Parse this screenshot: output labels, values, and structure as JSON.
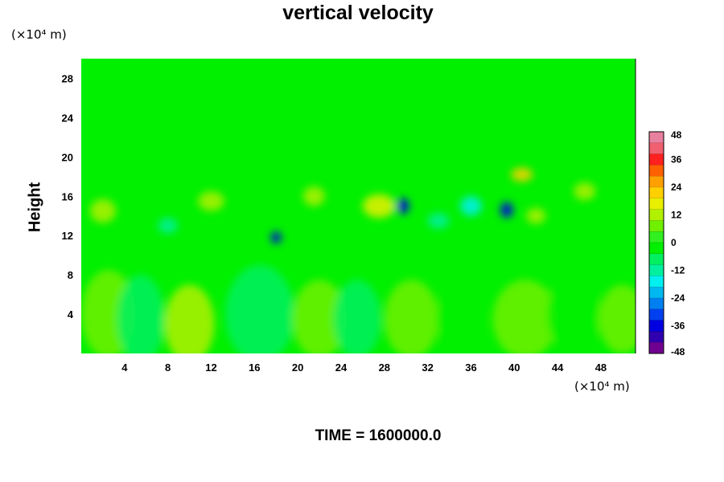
{
  "chart_data": {
    "type": "heatmap",
    "title": "vertical velocity",
    "ylabel": "Height",
    "xlabel": "",
    "x_unit": "(×10⁴ m)",
    "y_unit": "(×10⁴ m)",
    "footer": "TIME = 1600000.0",
    "xlim": [
      0,
      51.2
    ],
    "ylim": [
      0,
      30
    ],
    "x_ticks": [
      "4",
      "8",
      "12",
      "16",
      "20",
      "24",
      "28",
      "32",
      "36",
      "40",
      "44",
      "48"
    ],
    "y_ticks": [
      "4",
      "8",
      "12",
      "16",
      "20",
      "24",
      "28"
    ],
    "colorbar": {
      "range": [
        -48,
        48
      ],
      "ticks": [
        "48",
        "36",
        "24",
        "12",
        "0",
        "-12",
        "-24",
        "-36",
        "-48"
      ],
      "colors": [
        "#e880a0",
        "#f06070",
        "#ff2020",
        "#ff6000",
        "#ffa000",
        "#ffd000",
        "#e8f000",
        "#b0f000",
        "#70f000",
        "#30f020",
        "#00f000",
        "#00f060",
        "#00f0a0",
        "#00f0f0",
        "#00b8f0",
        "#0080f0",
        "#0040f0",
        "#0000e0",
        "#3000b0",
        "#700090"
      ]
    },
    "features": [
      {
        "x": 2.5,
        "y": 4.0,
        "rx": 2.5,
        "ry": 4.5,
        "v": 8
      },
      {
        "x": 5.5,
        "y": 3.5,
        "rx": 2.2,
        "ry": 4.5,
        "v": -6
      },
      {
        "x": 10.0,
        "y": 3.0,
        "rx": 2.3,
        "ry": 4.0,
        "v": 10
      },
      {
        "x": 16.5,
        "y": 4.0,
        "rx": 3.2,
        "ry": 5.0,
        "v": -5
      },
      {
        "x": 22.0,
        "y": 3.5,
        "rx": 2.5,
        "ry": 4.0,
        "v": 5
      },
      {
        "x": 25.5,
        "y": 3.5,
        "rx": 2.2,
        "ry": 4.0,
        "v": -5
      },
      {
        "x": 30.5,
        "y": 3.5,
        "rx": 2.5,
        "ry": 4.0,
        "v": 6
      },
      {
        "x": 35.0,
        "y": 3.5,
        "rx": 2.2,
        "ry": 4.0,
        "v": -4
      },
      {
        "x": 41.0,
        "y": 3.5,
        "rx": 3.0,
        "ry": 4.0,
        "v": 5
      },
      {
        "x": 45.5,
        "y": 4.0,
        "rx": 2.5,
        "ry": 4.0,
        "v": -4
      },
      {
        "x": 50.0,
        "y": 3.5,
        "rx": 2.2,
        "ry": 3.5,
        "v": 6
      },
      {
        "x": 18.0,
        "y": 11.8,
        "rx": 0.5,
        "ry": 0.6,
        "v": -36
      },
      {
        "x": 29.7,
        "y": 15.0,
        "rx": 0.6,
        "ry": 0.8,
        "v": -34
      },
      {
        "x": 39.3,
        "y": 14.6,
        "rx": 0.6,
        "ry": 0.8,
        "v": -34
      },
      {
        "x": 40.7,
        "y": 18.2,
        "rx": 1.0,
        "ry": 0.7,
        "v": 24
      },
      {
        "x": 27.5,
        "y": 15.0,
        "rx": 1.5,
        "ry": 1.2,
        "v": 16
      },
      {
        "x": 12.0,
        "y": 15.5,
        "rx": 1.2,
        "ry": 1.0,
        "v": 14
      },
      {
        "x": 2.0,
        "y": 14.5,
        "rx": 1.2,
        "ry": 1.2,
        "v": 12
      },
      {
        "x": 36.0,
        "y": 15.0,
        "rx": 1.0,
        "ry": 1.0,
        "v": -16
      },
      {
        "x": 33.0,
        "y": 13.5,
        "rx": 1.0,
        "ry": 0.8,
        "v": -12
      },
      {
        "x": 21.5,
        "y": 16.0,
        "rx": 1.0,
        "ry": 1.0,
        "v": 14
      },
      {
        "x": 8.0,
        "y": 13.0,
        "rx": 0.9,
        "ry": 0.8,
        "v": -12
      },
      {
        "x": 42.0,
        "y": 14.0,
        "rx": 0.9,
        "ry": 0.8,
        "v": 12
      },
      {
        "x": 46.5,
        "y": 16.5,
        "rx": 1.0,
        "ry": 0.9,
        "v": 12
      }
    ]
  }
}
